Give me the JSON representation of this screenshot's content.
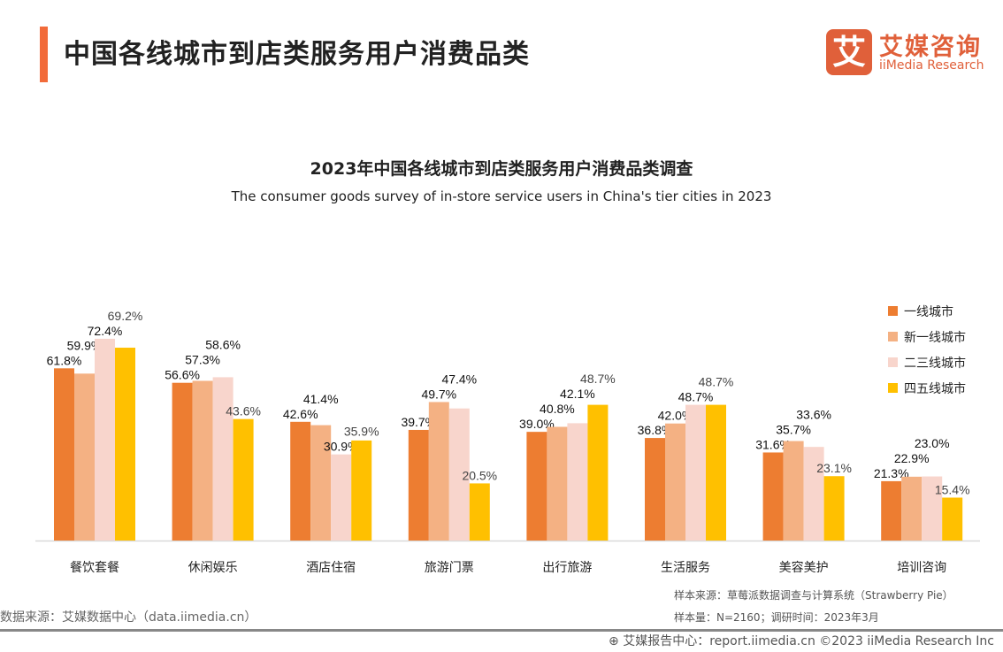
{
  "header": {
    "title": "中国各线城市到店类服务用户消费品类",
    "logo_cn": "艾媒咨询",
    "logo_en": "iiMedia Research",
    "logo_mark": "艾"
  },
  "chart_data": {
    "type": "bar",
    "title": "2023年中国各线城市到店类服务用户消费品类调查",
    "subtitle": "The consumer goods survey of in-store service users in China's tier cities  in 2023",
    "categories": [
      "餐饮套餐",
      "休闲娱乐",
      "酒店住宿",
      "旅游门票",
      "出行旅游",
      "生活服务",
      "美容美护",
      "培训咨询"
    ],
    "series": [
      {
        "name": "一线城市",
        "color": "#ED7D31",
        "values": [
          61.8,
          56.6,
          42.6,
          39.7,
          39.0,
          36.8,
          31.6,
          21.3
        ]
      },
      {
        "name": "新一线城市",
        "color": "#F4B183",
        "values": [
          59.9,
          57.3,
          41.4,
          49.7,
          40.8,
          42.0,
          35.7,
          22.9
        ]
      },
      {
        "name": "二三线城市",
        "color": "#F8D5CC",
        "values": [
          72.4,
          58.6,
          30.9,
          47.4,
          42.1,
          48.7,
          33.6,
          23.0
        ]
      },
      {
        "name": "四五线城市",
        "color": "#FFC000",
        "values": [
          69.2,
          43.6,
          35.9,
          20.5,
          48.7,
          48.7,
          23.1,
          15.4
        ]
      }
    ],
    "unit": "%",
    "legend": "right",
    "grid": false
  },
  "footer": {
    "data_source": "数据来源：艾媒数据中心（data.iimedia.cn）",
    "sample_source": "样本来源：草莓派数据调查与计算系统（Strawberry Pie）",
    "sample_size": "样本量：N=2160；调研时间：2023年3月",
    "report_center": "艾媒报告中心：report.iimedia.cn   ©2023  iiMedia Research  Inc"
  }
}
